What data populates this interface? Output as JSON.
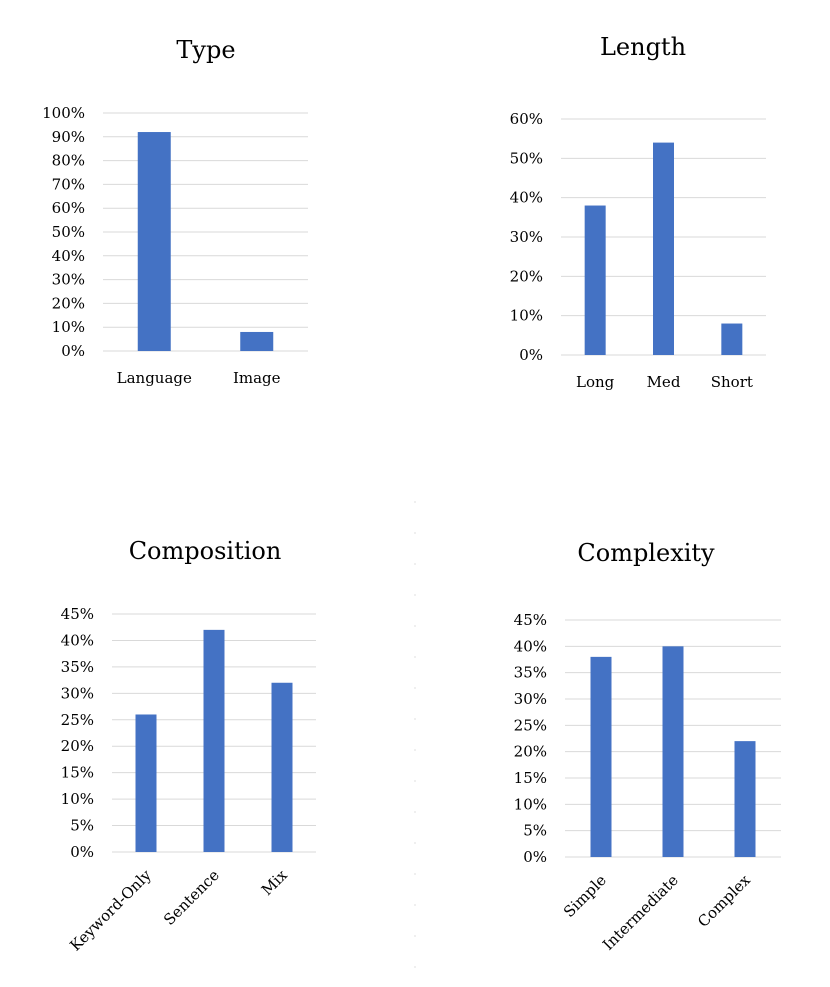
{
  "colors": {
    "bar": "#4472C4",
    "grid": "#D9D9D9",
    "text": "#000000"
  },
  "chart_data": [
    {
      "type": "bar",
      "title": "Type",
      "categories": [
        "Language",
        "Image"
      ],
      "values": [
        92,
        8
      ],
      "ylim": [
        0,
        100
      ],
      "ytick_step": 10,
      "ytick_labels": [
        "0%",
        "10%",
        "20%",
        "30%",
        "40%",
        "50%",
        "60%",
        "70%",
        "80%",
        "90%",
        "100%"
      ],
      "xlabel": "",
      "ylabel": "",
      "grid": true
    },
    {
      "type": "bar",
      "title": "Length",
      "categories": [
        "Long",
        "Med",
        "Short"
      ],
      "values": [
        38,
        54,
        8
      ],
      "ylim": [
        0,
        60
      ],
      "ytick_step": 10,
      "ytick_labels": [
        "0%",
        "10%",
        "20%",
        "30%",
        "40%",
        "50%",
        "60%"
      ],
      "xlabel": "",
      "ylabel": "",
      "grid": true
    },
    {
      "type": "bar",
      "title": "Composition",
      "categories": [
        "Keyword-Only",
        "Sentence",
        "Mix"
      ],
      "values": [
        26,
        42,
        32
      ],
      "ylim": [
        0,
        45
      ],
      "ytick_step": 5,
      "ytick_labels": [
        "0%",
        "5%",
        "10%",
        "15%",
        "20%",
        "25%",
        "30%",
        "35%",
        "40%",
        "45%"
      ],
      "xlabel": "",
      "ylabel": "",
      "grid": true
    },
    {
      "type": "bar",
      "title": "Complexity",
      "categories": [
        "Simple",
        "Intermediate",
        "Complex"
      ],
      "values": [
        38,
        40,
        22
      ],
      "ylim": [
        0,
        45
      ],
      "ytick_step": 5,
      "ytick_labels": [
        "0%",
        "5%",
        "10%",
        "15%",
        "20%",
        "25%",
        "30%",
        "35%",
        "40%",
        "45%"
      ],
      "xlabel": "",
      "ylabel": "",
      "grid": true
    }
  ]
}
